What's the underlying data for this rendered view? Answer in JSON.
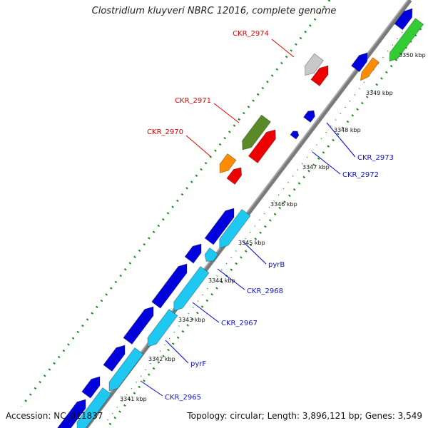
{
  "title": "Clostridium kluyveri NBRC 12016, complete genome",
  "footer": {
    "accession": "Accession: NC_011837",
    "summary": "Topology: circular; Length: 3,896,121 bp; Genes: 3,549"
  },
  "ticks": [
    "3341 kbp",
    "3342 kbp",
    "3343 kbp",
    "3344 kbp",
    "3345 kbp",
    "3346 kbp",
    "3347 kbp",
    "3348 kbp",
    "3349 kbp",
    "3350 kbp"
  ],
  "labels_red": [
    "CKR_2974",
    "CKR_2971",
    "CKR_2970"
  ],
  "labels_blue": [
    "CKR_2973",
    "CKR_2972",
    "pyrB",
    "CKR_2968",
    "CKR_2967",
    "pyrF",
    "CKR_2965"
  ],
  "colors": {
    "blue": "#0000dd",
    "cyan": "#1ec8f0",
    "red": "#ee0000",
    "orange": "#ff8c00",
    "olive": "#5a8a28",
    "lightgray": "#c8c8c8",
    "green": "#33cc33",
    "backbone": "#808080",
    "dots": "#1a8a1a"
  }
}
